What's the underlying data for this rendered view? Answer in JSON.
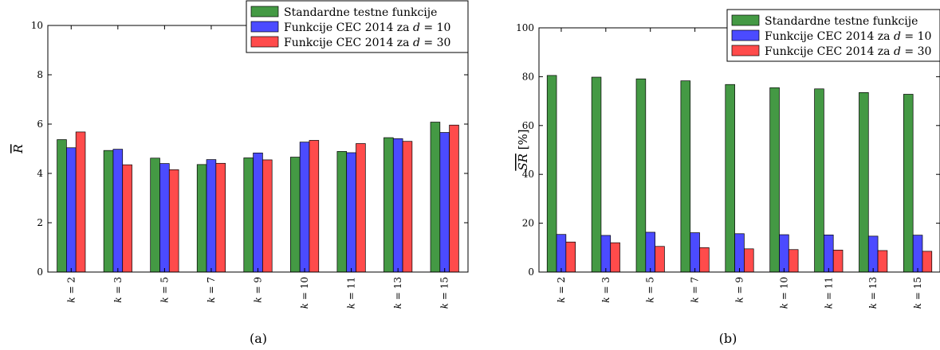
{
  "chart_data": [
    {
      "type": "bar",
      "panel_label": "(a)",
      "ylabel": "R",
      "ylabel_overline": true,
      "ylabel_unit": "",
      "ylim": [
        0,
        10
      ],
      "yticks": [
        0,
        2,
        4,
        6,
        8,
        10
      ],
      "grid": false,
      "legend_position": "top-right",
      "category_prefix": "k = ",
      "categories": [
        "k = 2",
        "k = 3",
        "k = 5",
        "k = 7",
        "k = 9",
        "k = 10",
        "k = 11",
        "k = 13",
        "k = 15"
      ],
      "series": [
        {
          "name": "Standardne testne funkcije",
          "color": "#449944",
          "values": [
            5.37,
            4.93,
            4.62,
            4.36,
            4.63,
            4.66,
            4.89,
            5.45,
            6.08
          ]
        },
        {
          "name_prefix": "Funkcije CEC 2014 za ",
          "name_var": "d",
          "name_value": "= 10",
          "color": "#4b4bff",
          "values": [
            5.04,
            4.98,
            4.4,
            4.56,
            4.83,
            5.27,
            4.84,
            5.41,
            5.66
          ]
        },
        {
          "name_prefix": "Funkcije CEC 2014 za ",
          "name_var": "d",
          "name_value": "= 30",
          "color": "#ff4b4b",
          "values": [
            5.68,
            4.35,
            4.15,
            4.41,
            4.55,
            5.34,
            5.21,
            5.3,
            5.96
          ]
        }
      ]
    },
    {
      "type": "bar",
      "panel_label": "(b)",
      "ylabel": "SR",
      "ylabel_overline": true,
      "ylabel_unit": " [%]",
      "ylim": [
        0,
        100
      ],
      "yticks": [
        0,
        20,
        40,
        60,
        80,
        100
      ],
      "grid": false,
      "legend_position": "top-right",
      "categories": [
        "k = 2",
        "k = 3",
        "k = 5",
        "k = 7",
        "k = 9",
        "k = 10",
        "k = 11",
        "k = 13",
        "k = 15"
      ],
      "series": [
        {
          "name": "Standardne testne funkcije",
          "color": "#449944",
          "values": [
            80.5,
            79.8,
            79.1,
            78.3,
            76.8,
            75.5,
            75.0,
            73.5,
            72.8
          ]
        },
        {
          "name_prefix": "Funkcije CEC 2014 za ",
          "name_var": "d",
          "name_value": "= 10",
          "color": "#4b4bff",
          "values": [
            15.4,
            15.0,
            16.3,
            16.1,
            15.7,
            15.3,
            15.2,
            14.7,
            15.1
          ]
        },
        {
          "name_prefix": "Funkcije CEC 2014 za ",
          "name_var": "d",
          "name_value": "= 30",
          "color": "#ff4b4b",
          "values": [
            12.3,
            12.0,
            10.5,
            10.0,
            9.5,
            9.2,
            9.0,
            8.8,
            8.5
          ]
        }
      ]
    }
  ]
}
